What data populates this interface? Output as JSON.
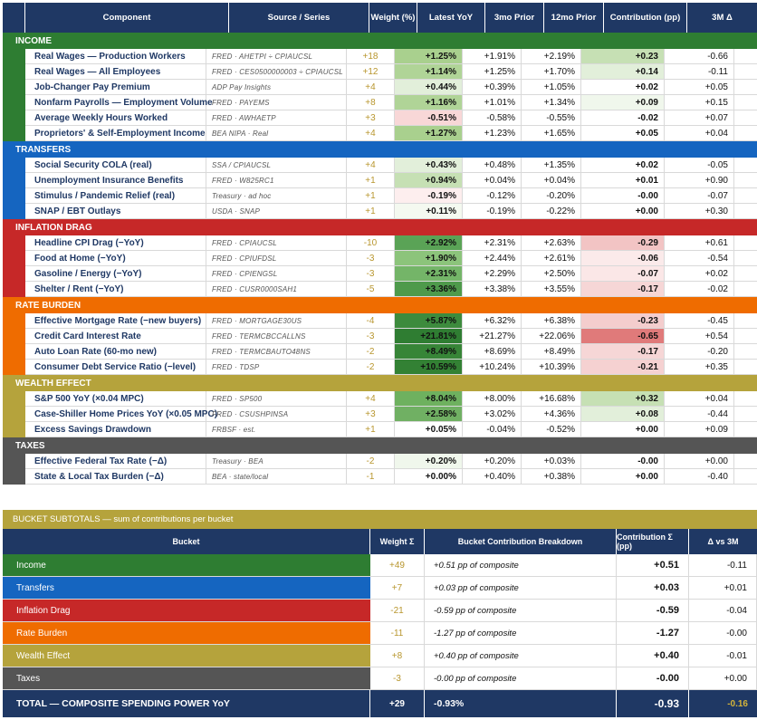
{
  "header": {
    "component": "Component",
    "source": "Source / Series",
    "weight": "Weight (%)",
    "yoy": "Latest YoY",
    "prior3": "3mo Prior",
    "prior12": "12mo Prior",
    "contribution": "Contribution (pp)",
    "d3m": "3M Δ"
  },
  "sections": [
    {
      "name": "INCOME",
      "color": "#2e7d32",
      "rows": [
        {
          "component": "Real Wages — Production Workers",
          "source": "FRED · AHETPI ÷ CPIAUCSL",
          "weight": "+18",
          "yoy": "+1.25%",
          "yoy_bg": "#a9d08e",
          "prior3": "+1.91%",
          "prior12": "+2.19%",
          "contribution": "+0.23",
          "contr_bg": "#c6e0b4",
          "d3m": "-0.66"
        },
        {
          "component": "Real Wages — All Employees",
          "source": "FRED · CES0500000003 ÷ CPIAUCSL",
          "weight": "+12",
          "yoy": "+1.14%",
          "yoy_bg": "#b0d497",
          "prior3": "+1.25%",
          "prior12": "+1.70%",
          "contribution": "+0.14",
          "contr_bg": "#e2efda",
          "d3m": "-0.11"
        },
        {
          "component": "Job-Changer Pay Premium",
          "source": "ADP Pay Insights",
          "weight": "+4",
          "yoy": "+0.44%",
          "yoy_bg": "#e2efda",
          "prior3": "+0.39%",
          "prior12": "+1.05%",
          "contribution": "+0.02",
          "contr_bg": "#ffffff",
          "d3m": "+0.05"
        },
        {
          "component": "Nonfarm Payrolls — Employment Volume",
          "source": "FRED · PAYEMS",
          "weight": "+8",
          "yoy": "+1.16%",
          "yoy_bg": "#b0d497",
          "prior3": "+1.01%",
          "prior12": "+1.34%",
          "contribution": "+0.09",
          "contr_bg": "#f0f7ec",
          "d3m": "+0.15"
        },
        {
          "component": "Average Weekly Hours Worked",
          "source": "FRED · AWHAETP",
          "weight": "+3",
          "yoy": "-0.51%",
          "yoy_bg": "#f8d7d7",
          "prior3": "-0.58%",
          "prior12": "-0.55%",
          "contribution": "-0.02",
          "contr_bg": "#ffffff",
          "d3m": "+0.07"
        },
        {
          "component": "Proprietors' & Self-Employment Income",
          "source": "BEA NIPA · Real",
          "weight": "+4",
          "yoy": "+1.27%",
          "yoy_bg": "#a9d08e",
          "prior3": "+1.23%",
          "prior12": "+1.65%",
          "contribution": "+0.05",
          "contr_bg": "#ffffff",
          "d3m": "+0.04"
        }
      ]
    },
    {
      "name": "TRANSFERS",
      "color": "#1565c0",
      "rows": [
        {
          "component": "Social Security COLA (real)",
          "source": "SSA / CPIAUCSL",
          "weight": "+4",
          "yoy": "+0.43%",
          "yoy_bg": "#e2efda",
          "prior3": "+0.48%",
          "prior12": "+1.35%",
          "contribution": "+0.02",
          "contr_bg": "#ffffff",
          "d3m": "-0.05"
        },
        {
          "component": "Unemployment Insurance Benefits",
          "source": "FRED · W825RC1",
          "weight": "+1",
          "yoy": "+0.94%",
          "yoy_bg": "#c6e0b4",
          "prior3": "+0.04%",
          "prior12": "+0.04%",
          "contribution": "+0.01",
          "contr_bg": "#ffffff",
          "d3m": "+0.90"
        },
        {
          "component": "Stimulus / Pandemic Relief (real)",
          "source": "Treasury · ad hoc",
          "weight": "+1",
          "yoy": "-0.19%",
          "yoy_bg": "#fdeeee",
          "prior3": "-0.12%",
          "prior12": "-0.20%",
          "contribution": "-0.00",
          "contr_bg": "#ffffff",
          "d3m": "-0.07"
        },
        {
          "component": "SNAP / EBT Outlays",
          "source": "USDA · SNAP",
          "weight": "+1",
          "yoy": "+0.11%",
          "yoy_bg": "#f4f9f0",
          "prior3": "-0.19%",
          "prior12": "-0.22%",
          "contribution": "+0.00",
          "contr_bg": "#ffffff",
          "d3m": "+0.30"
        }
      ]
    },
    {
      "name": "INFLATION DRAG",
      "color": "#c62828",
      "rows": [
        {
          "component": "Headline CPI Drag (−YoY)",
          "source": "FRED · CPIAUCSL",
          "weight": "-10",
          "yoy": "+2.92%",
          "yoy_bg": "#5aa356",
          "prior3": "+2.31%",
          "prior12": "+2.63%",
          "contribution": "-0.29",
          "contr_bg": "#f2c4c4",
          "d3m": "+0.61"
        },
        {
          "component": "Food at Home (−YoY)",
          "source": "FRED · CPIUFDSL",
          "weight": "-3",
          "yoy": "+1.90%",
          "yoy_bg": "#8cc47b",
          "prior3": "+2.44%",
          "prior12": "+2.61%",
          "contribution": "-0.06",
          "contr_bg": "#fbeaea",
          "d3m": "-0.54"
        },
        {
          "component": "Gasoline / Energy (−YoY)",
          "source": "FRED · CPIENGSL",
          "weight": "-3",
          "yoy": "+2.31%",
          "yoy_bg": "#74b568",
          "prior3": "+2.29%",
          "prior12": "+2.50%",
          "contribution": "-0.07",
          "contr_bg": "#fbe7e7",
          "d3m": "+0.02"
        },
        {
          "component": "Shelter / Rent (−YoY)",
          "source": "FRED · CUSR0000SAH1",
          "weight": "-5",
          "yoy": "+3.36%",
          "yoy_bg": "#4e9a4b",
          "prior3": "+3.38%",
          "prior12": "+3.55%",
          "contribution": "-0.17",
          "contr_bg": "#f6d6d6",
          "d3m": "-0.02"
        }
      ]
    },
    {
      "name": "RATE BURDEN",
      "color": "#ef6c00",
      "rows": [
        {
          "component": "Effective Mortgage Rate (−new buyers)",
          "source": "FRED · MORTGAGE30US",
          "weight": "-4",
          "yoy": "+5.87%",
          "yoy_bg": "#3d8b3d",
          "prior3": "+6.32%",
          "prior12": "+6.38%",
          "contribution": "-0.23",
          "contr_bg": "#f4cdcd",
          "d3m": "-0.45"
        },
        {
          "component": "Credit Card Interest Rate",
          "source": "FRED · TERMCBCCALLNS",
          "weight": "-3",
          "yoy": "+21.81%",
          "yoy_bg": "#2f7d32",
          "prior3": "+21.27%",
          "prior12": "+22.06%",
          "contribution": "-0.65",
          "contr_bg": "#e07a7a",
          "d3m": "+0.54"
        },
        {
          "component": "Auto Loan Rate (60-mo new)",
          "source": "FRED · TERMCBAUTO48NS",
          "weight": "-2",
          "yoy": "+8.49%",
          "yoy_bg": "#378537",
          "prior3": "+8.69%",
          "prior12": "+8.49%",
          "contribution": "-0.17",
          "contr_bg": "#f6d6d6",
          "d3m": "-0.20"
        },
        {
          "component": "Consumer Debt Service Ratio (−level)",
          "source": "FRED · TDSP",
          "weight": "-2",
          "yoy": "+10.59%",
          "yoy_bg": "#338134",
          "prior3": "+10.24%",
          "prior12": "+10.39%",
          "contribution": "-0.21",
          "contr_bg": "#f5d1d1",
          "d3m": "+0.35"
        }
      ]
    },
    {
      "name": "WEALTH EFFECT",
      "color": "#b5a33c",
      "rows": [
        {
          "component": "S&P 500 YoY (×0.04 MPC)",
          "source": "FRED · SP500",
          "weight": "+4",
          "yoy": "+8.04%",
          "yoy_bg": "#6eb15f",
          "prior3": "+8.00%",
          "prior12": "+16.68%",
          "contribution": "+0.32",
          "contr_bg": "#c6e0b4",
          "d3m": "+0.04"
        },
        {
          "component": "Case-Shiller Home Prices YoY (×0.05 MPC)",
          "source": "FRED · CSUSHPINSA",
          "weight": "+3",
          "yoy": "+2.58%",
          "yoy_bg": "#70b063",
          "prior3": "+3.02%",
          "prior12": "+4.36%",
          "contribution": "+0.08",
          "contr_bg": "#e2efda",
          "d3m": "-0.44"
        },
        {
          "component": "Excess Savings Drawdown",
          "source": "FRBSF · est.",
          "weight": "+1",
          "yoy": "+0.05%",
          "yoy_bg": "#ffffff",
          "prior3": "-0.04%",
          "prior12": "-0.52%",
          "contribution": "+0.00",
          "contr_bg": "#ffffff",
          "d3m": "+0.09"
        }
      ]
    },
    {
      "name": "TAXES",
      "color": "#555555",
      "rows": [
        {
          "component": "Effective Federal Tax Rate (−Δ)",
          "source": "Treasury · BEA",
          "weight": "-2",
          "yoy": "+0.20%",
          "yoy_bg": "#f0f7ec",
          "prior3": "+0.20%",
          "prior12": "+0.03%",
          "contribution": "-0.00",
          "contr_bg": "#ffffff",
          "d3m": "+0.00"
        },
        {
          "component": "State & Local Tax Burden (−Δ)",
          "source": "BEA · state/local",
          "weight": "-1",
          "yoy": "+0.00%",
          "yoy_bg": "#ffffff",
          "prior3": "+0.40%",
          "prior12": "+0.38%",
          "contribution": "+0.00",
          "contr_bg": "#ffffff",
          "d3m": "-0.40"
        }
      ]
    }
  ],
  "subtotals": {
    "title": "BUCKET SUBTOTALS — sum of contributions per bucket",
    "header": {
      "bucket": "Bucket",
      "weight": "Weight Σ",
      "breakdown": "Bucket Contribution Breakdown",
      "contribution": "Contribution Σ (pp)",
      "d3m": "Δ vs 3M"
    },
    "rows": [
      {
        "bucket": "Income",
        "color": "#2e7d32",
        "weight": "+49",
        "breakdown": "+0.51 pp of composite",
        "contribution": "+0.51",
        "d3m": "-0.11"
      },
      {
        "bucket": "Transfers",
        "color": "#1565c0",
        "weight": "+7",
        "breakdown": "+0.03 pp of composite",
        "contribution": "+0.03",
        "d3m": "+0.01"
      },
      {
        "bucket": "Inflation Drag",
        "color": "#c62828",
        "weight": "-21",
        "breakdown": "-0.59 pp of composite",
        "contribution": "-0.59",
        "d3m": "-0.04"
      },
      {
        "bucket": "Rate Burden",
        "color": "#ef6c00",
        "weight": "-11",
        "breakdown": "-1.27 pp of composite",
        "contribution": "-1.27",
        "d3m": "-0.00"
      },
      {
        "bucket": "Wealth Effect",
        "color": "#b5a33c",
        "weight": "+8",
        "breakdown": "+0.40 pp of composite",
        "contribution": "+0.40",
        "d3m": "-0.01"
      },
      {
        "bucket": "Taxes",
        "color": "#555555",
        "weight": "-3",
        "breakdown": "-0.00 pp of composite",
        "contribution": "-0.00",
        "d3m": "+0.00"
      }
    ],
    "total": {
      "label": "TOTAL — COMPOSITE SPENDING POWER YoY",
      "weight": "+29",
      "breakdown": "-0.93%",
      "contribution": "-0.93",
      "d3m": "-0.16"
    }
  }
}
